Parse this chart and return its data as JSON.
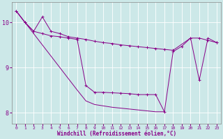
{
  "background_color": "#cce8e8",
  "grid_color": "#c0dede",
  "line_color": "#880088",
  "xlabel": "Windchill (Refroidissement éolien,°C)",
  "ylim": [
    7.75,
    10.45
  ],
  "yticks": [
    8,
    9,
    10
  ],
  "xticks": [
    0,
    1,
    2,
    3,
    4,
    5,
    6,
    7,
    8,
    9,
    10,
    11,
    12,
    13,
    14,
    15,
    16,
    17,
    18,
    19,
    20,
    21,
    22,
    23
  ],
  "s1_x": [
    0,
    1,
    2,
    3,
    4,
    5,
    6,
    7,
    8,
    9,
    10,
    11,
    12,
    13,
    14,
    15,
    16,
    17,
    18,
    20,
    21,
    22,
    23
  ],
  "s1_y": [
    10.25,
    10.0,
    9.8,
    10.12,
    9.8,
    9.75,
    9.68,
    9.65,
    9.62,
    9.58,
    9.55,
    9.53,
    9.5,
    9.48,
    9.46,
    9.44,
    9.42,
    9.4,
    9.38,
    9.65,
    9.65,
    9.6,
    9.55
  ],
  "s2_x": [
    0,
    1,
    2,
    3,
    4,
    5,
    6,
    7,
    8,
    9,
    10,
    11,
    12,
    13,
    14,
    15,
    16,
    17,
    18,
    19,
    20,
    21,
    22,
    23
  ],
  "s2_y": [
    10.25,
    10.0,
    9.8,
    9.75,
    9.7,
    9.68,
    9.65,
    9.62,
    8.6,
    8.45,
    8.45,
    8.44,
    8.43,
    8.42,
    8.4,
    8.4,
    8.4,
    8.02,
    9.35,
    9.47,
    9.65,
    8.72,
    9.65,
    9.55
  ],
  "s3_x": [
    0,
    1,
    2,
    3,
    4,
    5,
    6,
    7,
    8,
    9,
    10,
    11,
    12,
    13,
    14,
    15,
    16,
    17
  ],
  "s3_y": [
    10.25,
    10.0,
    9.75,
    9.5,
    9.25,
    9.0,
    8.75,
    8.5,
    8.26,
    8.18,
    8.15,
    8.12,
    8.1,
    8.08,
    8.06,
    8.04,
    8.02,
    8.02
  ]
}
